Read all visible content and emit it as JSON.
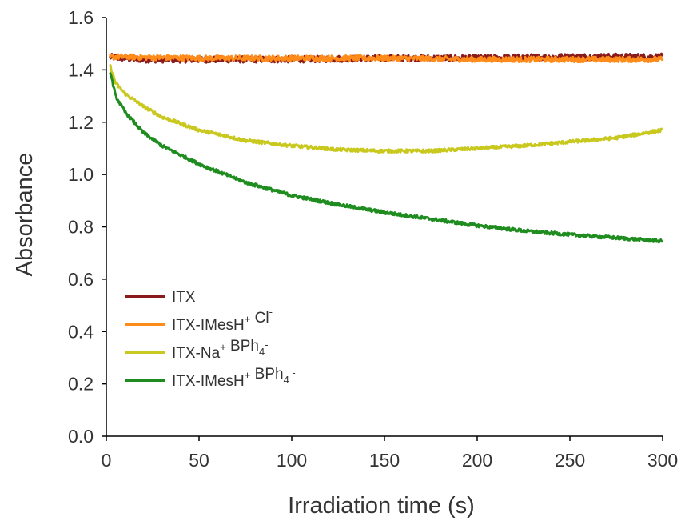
{
  "chart_data": {
    "type": "line",
    "xlabel": "Irradiation time (s)",
    "ylabel": "Absorbance",
    "xlim": [
      0,
      300
    ],
    "ylim": [
      0.0,
      1.6
    ],
    "xticks": [
      0,
      50,
      100,
      150,
      200,
      250,
      300
    ],
    "yticks": [
      0.0,
      0.2,
      0.4,
      0.6,
      0.8,
      1.0,
      1.2,
      1.4,
      1.6
    ],
    "xtick_labels": [
      "0",
      "50",
      "100",
      "150",
      "200",
      "250",
      "300"
    ],
    "ytick_labels": [
      "0.0",
      "0.2",
      "0.4",
      "0.6",
      "0.8",
      "1.0",
      "1.2",
      "1.4",
      "1.6"
    ],
    "grid": false,
    "legend_position": "bottom-left",
    "series": [
      {
        "key": "itx",
        "name": "ITX",
        "color": "#8b1a1a",
        "noise": 0.012,
        "x": [
          0,
          10,
          20,
          50,
          100,
          150,
          200,
          250,
          300
        ],
        "y": [
          1.45,
          1.445,
          1.44,
          1.44,
          1.44,
          1.445,
          1.445,
          1.45,
          1.45
        ]
      },
      {
        "key": "itx_imesh_cl",
        "name": "ITX-IMesH+ Cl-",
        "label_parts": [
          {
            "text": "ITX-IMesH",
            "role": "base"
          },
          {
            "text": "+",
            "role": "sup"
          },
          {
            "text": " Cl",
            "role": "base"
          },
          {
            "text": "-",
            "role": "sup"
          }
        ],
        "color": "#ff8c1a",
        "noise": 0.01,
        "x": [
          0,
          10,
          20,
          50,
          100,
          150,
          200,
          250,
          300
        ],
        "y": [
          1.45,
          1.45,
          1.448,
          1.445,
          1.445,
          1.445,
          1.44,
          1.44,
          1.44
        ]
      },
      {
        "key": "itx_na_bph4",
        "name": "ITX-Na+ BPh4-",
        "label_parts": [
          {
            "text": "ITX-Na",
            "role": "base"
          },
          {
            "text": "+",
            "role": "sup"
          },
          {
            "text": " BPh",
            "role": "base"
          },
          {
            "text": "4",
            "role": "sub"
          },
          {
            "text": "-",
            "role": "sup"
          }
        ],
        "color": "#c8c81e",
        "noise": 0.006,
        "x": [
          0,
          5,
          10,
          20,
          30,
          50,
          75,
          100,
          125,
          150,
          175,
          200,
          225,
          250,
          275,
          300
        ],
        "y": [
          1.46,
          1.35,
          1.31,
          1.26,
          1.22,
          1.17,
          1.13,
          1.11,
          1.095,
          1.09,
          1.09,
          1.1,
          1.11,
          1.125,
          1.14,
          1.17
        ]
      },
      {
        "key": "itx_imesh_bph4",
        "name": "ITX-IMesH+ BPh4-",
        "label_parts": [
          {
            "text": "ITX-IMesH",
            "role": "base"
          },
          {
            "text": "+",
            "role": "sup"
          },
          {
            "text": " BPh",
            "role": "base"
          },
          {
            "text": "4",
            "role": "sub"
          },
          {
            "text": " -",
            "role": "sup"
          }
        ],
        "color": "#1e8c1e",
        "noise": 0.006,
        "x": [
          0,
          5,
          10,
          20,
          30,
          50,
          75,
          100,
          125,
          150,
          175,
          200,
          225,
          250,
          275,
          300
        ],
        "y": [
          1.46,
          1.3,
          1.24,
          1.16,
          1.11,
          1.04,
          0.97,
          0.92,
          0.885,
          0.855,
          0.83,
          0.805,
          0.785,
          0.77,
          0.758,
          0.745
        ]
      }
    ]
  }
}
